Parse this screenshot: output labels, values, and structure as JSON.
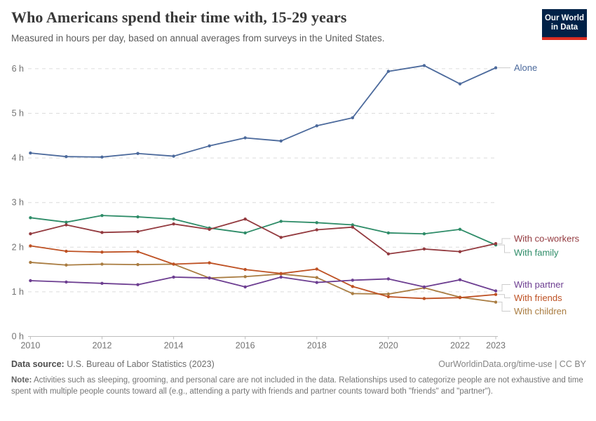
{
  "header": {
    "title": "Who Americans spend their time with, 15-29 years",
    "subtitle": "Measured in hours per day, based on annual averages from surveys in the United States.",
    "logo": {
      "line1": "Our World",
      "line2": "in Data"
    }
  },
  "chart_data": {
    "type": "line",
    "title": "Who Americans spend their time with, 15-29 years",
    "xlabel": "",
    "ylabel": "hours per day",
    "x": [
      2010,
      2011,
      2012,
      2013,
      2014,
      2015,
      2016,
      2017,
      2018,
      2019,
      2020,
      2021,
      2022,
      2023
    ],
    "x_tick_labels": [
      "2010",
      "2012",
      "2014",
      "2016",
      "2018",
      "2020",
      "2022",
      "2023"
    ],
    "x_tick_years": [
      2010,
      2012,
      2014,
      2016,
      2018,
      2020,
      2022,
      2023
    ],
    "y_ticks": [
      0,
      1,
      2,
      3,
      4,
      5,
      6
    ],
    "y_tick_suffix": " h",
    "ylim": [
      0,
      6.3
    ],
    "grid": "horizontal-dashed",
    "legend_position": "right-edge-labels",
    "series": [
      {
        "id": "with-family",
        "name": "With family",
        "color": "#2E8C68",
        "values": [
          2.66,
          2.56,
          2.71,
          2.68,
          2.63,
          2.43,
          2.32,
          2.58,
          2.55,
          2.5,
          2.32,
          2.3,
          2.4,
          2.05
        ]
      },
      {
        "id": "with-coworkers",
        "name": "With co-workers",
        "color": "#933A3F",
        "values": [
          2.3,
          2.5,
          2.33,
          2.35,
          2.52,
          2.4,
          2.63,
          2.22,
          2.39,
          2.45,
          1.85,
          1.96,
          1.9,
          2.08
        ]
      },
      {
        "id": "with-children",
        "name": "With children",
        "color": "#A97C41",
        "values": [
          1.66,
          1.6,
          1.62,
          1.61,
          1.62,
          1.31,
          1.34,
          1.4,
          1.32,
          0.96,
          0.95,
          1.09,
          0.88,
          0.77
        ]
      },
      {
        "id": "with-friends",
        "name": "With friends",
        "color": "#BE5123",
        "values": [
          2.03,
          1.91,
          1.89,
          1.9,
          1.62,
          1.65,
          1.5,
          1.41,
          1.51,
          1.12,
          0.89,
          0.85,
          0.87,
          0.94
        ]
      },
      {
        "id": "with-partner",
        "name": "With partner",
        "color": "#6D3E91",
        "values": [
          1.25,
          1.22,
          1.19,
          1.16,
          1.33,
          1.31,
          1.11,
          1.33,
          1.21,
          1.26,
          1.29,
          1.11,
          1.27,
          1.02
        ]
      },
      {
        "id": "alone",
        "name": "Alone",
        "color": "#4C6A9C",
        "values": [
          4.11,
          4.03,
          4.02,
          4.1,
          4.04,
          4.27,
          4.45,
          4.38,
          4.72,
          4.9,
          5.94,
          6.07,
          5.66,
          6.02
        ]
      }
    ]
  },
  "footer": {
    "datasource_label": "Data source:",
    "datasource_value": "U.S. Bureau of Labor Statistics (2023)",
    "link": "OurWorldinData.org/time-use | CC BY",
    "note_label": "Note:",
    "note_text": "Activities such as sleeping, grooming, and personal care are not included in the data. Relationships used to categorize people are not exhaustive and time spent with multiple people counts toward all (e.g., attending a party with friends and partner counts toward both \"friends\" and \"partner\")."
  }
}
